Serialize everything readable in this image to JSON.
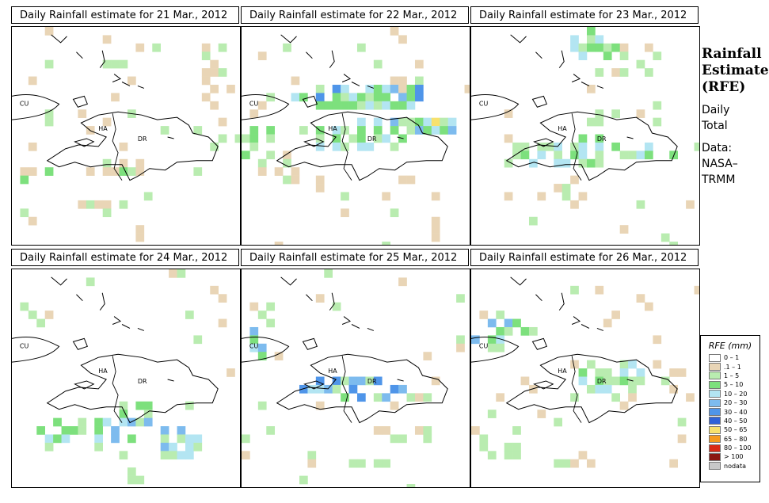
{
  "panels": [
    {
      "title": "Daily Rainfall estimate for  21 Mar., 2012"
    },
    {
      "title": "Daily Rainfall estimate for  22 Mar., 2012"
    },
    {
      "title": "Daily Rainfall estimate for  23 Mar., 2012"
    },
    {
      "title": "Daily Rainfall estimate for  24 Mar., 2012"
    },
    {
      "title": "Daily Rainfall estimate for  25 Mar., 2012"
    },
    {
      "title": "Daily Rainfall estimate for  26 Mar., 2012"
    }
  ],
  "map_labels": {
    "cuba": "CU",
    "haiti": "HA",
    "dominican_republic": "DR"
  },
  "side": {
    "title_lines": [
      "Rainfall",
      "Estimate",
      "(RFE)"
    ],
    "line1": "Daily",
    "line2": "Total",
    "line3": "Data:",
    "line4": "NASA–",
    "line5": "TRMM"
  },
  "legend": {
    "title": "RFE (mm)",
    "items": [
      {
        "label": "0 – 1",
        "color": "#ffffff"
      },
      {
        "label": ".1 – 1",
        "color": "#e9d5b6"
      },
      {
        "label": "1 – 5",
        "color": "#b9ecb0"
      },
      {
        "label": "5 – 10",
        "color": "#7de07d"
      },
      {
        "label": "10 – 20",
        "color": "#b3e5f2"
      },
      {
        "label": "20 – 30",
        "color": "#7dbbee"
      },
      {
        "label": "30 – 40",
        "color": "#4f95e9"
      },
      {
        "label": "40 – 50",
        "color": "#2f62d8"
      },
      {
        "label": "50 – 65",
        "color": "#f7e16e"
      },
      {
        "label": "65 – 80",
        "color": "#f59a1f"
      },
      {
        "label": "80 – 100",
        "color": "#d92a16"
      },
      {
        "label": "> 100",
        "color": "#8a1610"
      },
      {
        "label": "nodata",
        "color": "#c8c8c8"
      }
    ]
  }
}
